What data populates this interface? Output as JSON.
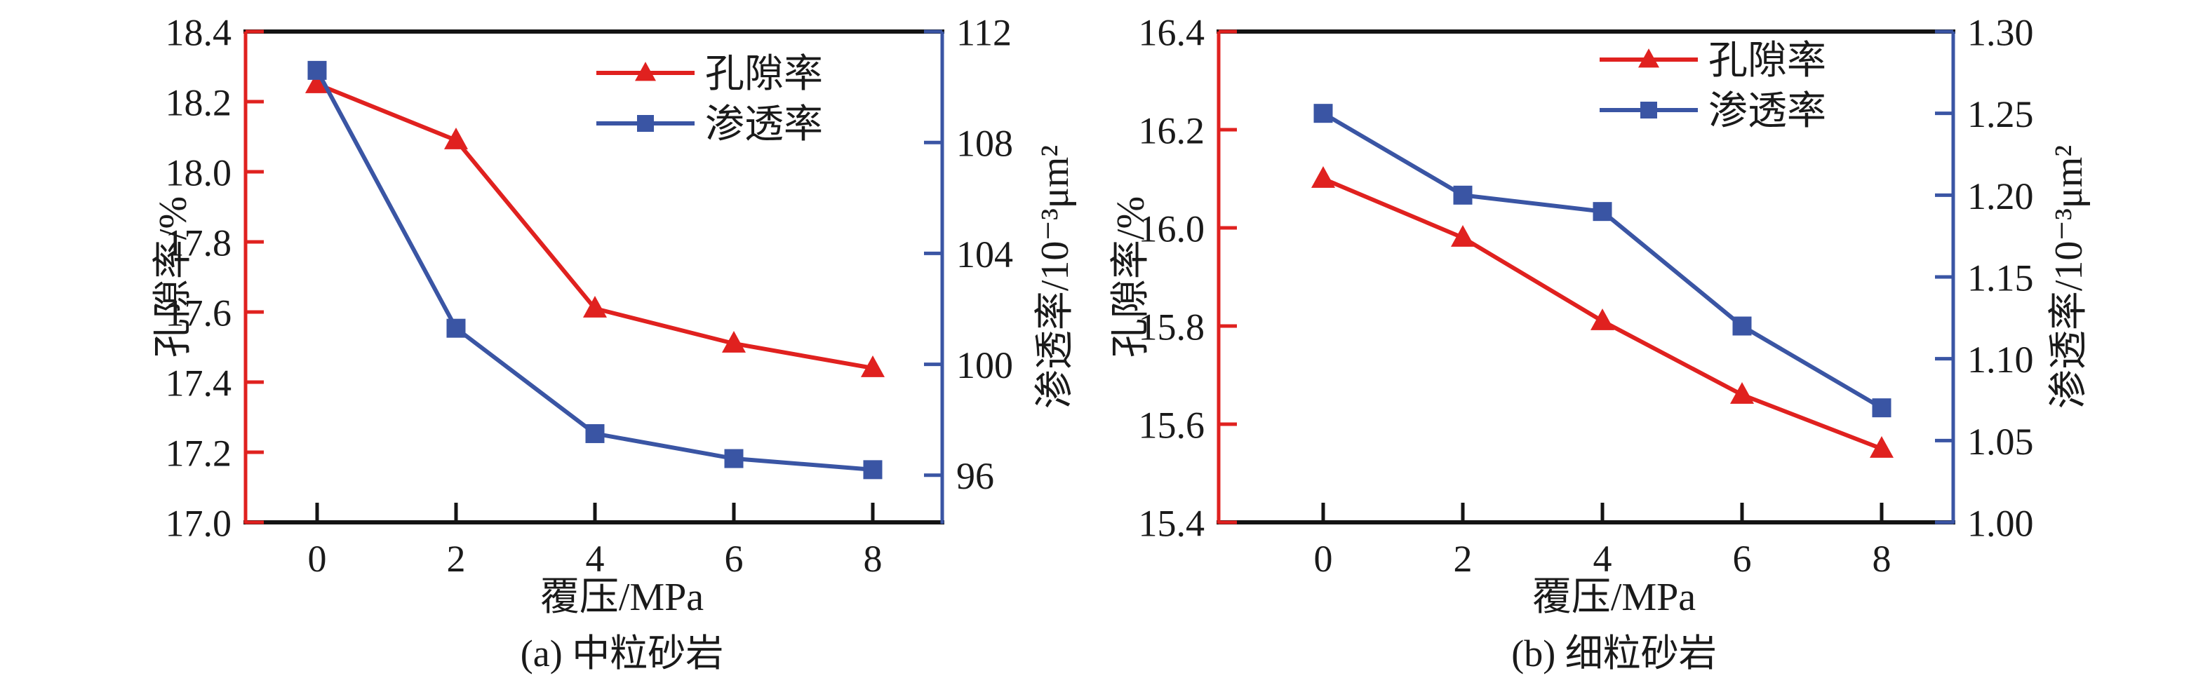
{
  "colors": {
    "porosity_red": "#e0211f",
    "permeability_blue": "#3a55a4",
    "frame_black": "#141414",
    "text": "#1a1a1a",
    "background": "#ffffff"
  },
  "chart_data": [
    {
      "type": "line",
      "caption": "(a) 中粒砂岩",
      "xlabel": "覆压/MPa",
      "x_ticks": [
        "0",
        "2",
        "4",
        "6",
        "8"
      ],
      "left_axis": {
        "label": "孔隙率/%",
        "min": 17.0,
        "max": 18.4,
        "ticks": [
          "18.4",
          "18.2",
          "18.0",
          "17.8",
          "17.6",
          "17.4",
          "17.2",
          "17.0"
        ]
      },
      "right_axis": {
        "label": "渗透率/10⁻³μm²",
        "min": 94.3,
        "max": 112,
        "ticks": [
          "112",
          "108",
          "104",
          "100",
          "96"
        ]
      },
      "legend": [
        {
          "label": "孔隙率",
          "marker": "triangle"
        },
        {
          "label": "渗透率",
          "marker": "square"
        }
      ],
      "series": [
        {
          "name": "孔隙率",
          "axis": "left",
          "marker": "triangle",
          "x": [
            0,
            2,
            4,
            6,
            8
          ],
          "values": [
            18.25,
            18.09,
            17.61,
            17.51,
            17.44
          ]
        },
        {
          "name": "渗透率",
          "axis": "right",
          "marker": "square",
          "x": [
            0,
            2,
            4,
            6,
            8
          ],
          "values": [
            110.6,
            101.3,
            97.5,
            96.6,
            96.2
          ]
        }
      ]
    },
    {
      "type": "line",
      "caption": "(b) 细粒砂岩",
      "xlabel": "覆压/MPa",
      "x_ticks": [
        "0",
        "2",
        "4",
        "6",
        "8"
      ],
      "left_axis": {
        "label": "孔隙率/%",
        "min": 15.4,
        "max": 16.4,
        "ticks": [
          "16.4",
          "16.2",
          "16.0",
          "15.8",
          "15.6",
          "15.4"
        ]
      },
      "right_axis": {
        "label": "渗透率/10⁻³μm²",
        "min": 1.0,
        "max": 1.3,
        "ticks": [
          "1.30",
          "1.25",
          "1.20",
          "1.15",
          "1.10",
          "1.05",
          "1.00"
        ]
      },
      "legend": [
        {
          "label": "孔隙率",
          "marker": "triangle"
        },
        {
          "label": "渗透率",
          "marker": "square"
        }
      ],
      "series": [
        {
          "name": "孔隙率",
          "axis": "left",
          "marker": "triangle",
          "x": [
            0,
            2,
            4,
            6,
            8
          ],
          "values": [
            16.1,
            15.98,
            15.81,
            15.66,
            15.55
          ]
        },
        {
          "name": "渗透率",
          "axis": "right",
          "marker": "square",
          "x": [
            0,
            2,
            4,
            6,
            8
          ],
          "values": [
            1.25,
            1.2,
            1.19,
            1.12,
            1.07
          ]
        }
      ]
    }
  ]
}
